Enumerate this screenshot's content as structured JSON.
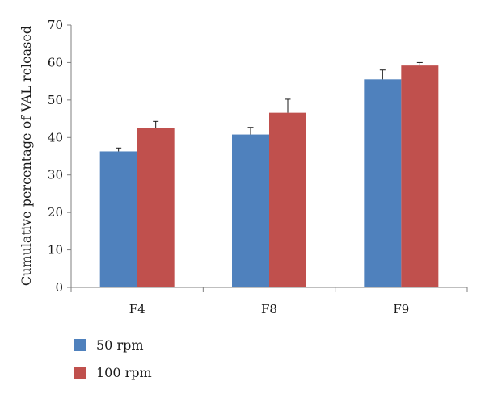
{
  "chart_data": {
    "type": "bar",
    "title": "",
    "xlabel": "",
    "ylabel": "Cumulative percentage of VAL released",
    "ylim": [
      0,
      70
    ],
    "yticks": [
      0,
      10,
      20,
      30,
      40,
      50,
      60,
      70
    ],
    "grid": false,
    "legend_position": "bottom-left",
    "categories": [
      "F4",
      "F8",
      "F9"
    ],
    "series": [
      {
        "name": "50 rpm",
        "color": "#4F81BD",
        "values": [
          36.3,
          40.8,
          55.5
        ],
        "errors": [
          0.9,
          1.9,
          2.5
        ]
      },
      {
        "name": "100 rpm",
        "color": "#C0504D",
        "values": [
          42.5,
          46.6,
          59.2
        ],
        "errors": [
          1.8,
          3.6,
          0.8
        ]
      }
    ]
  }
}
